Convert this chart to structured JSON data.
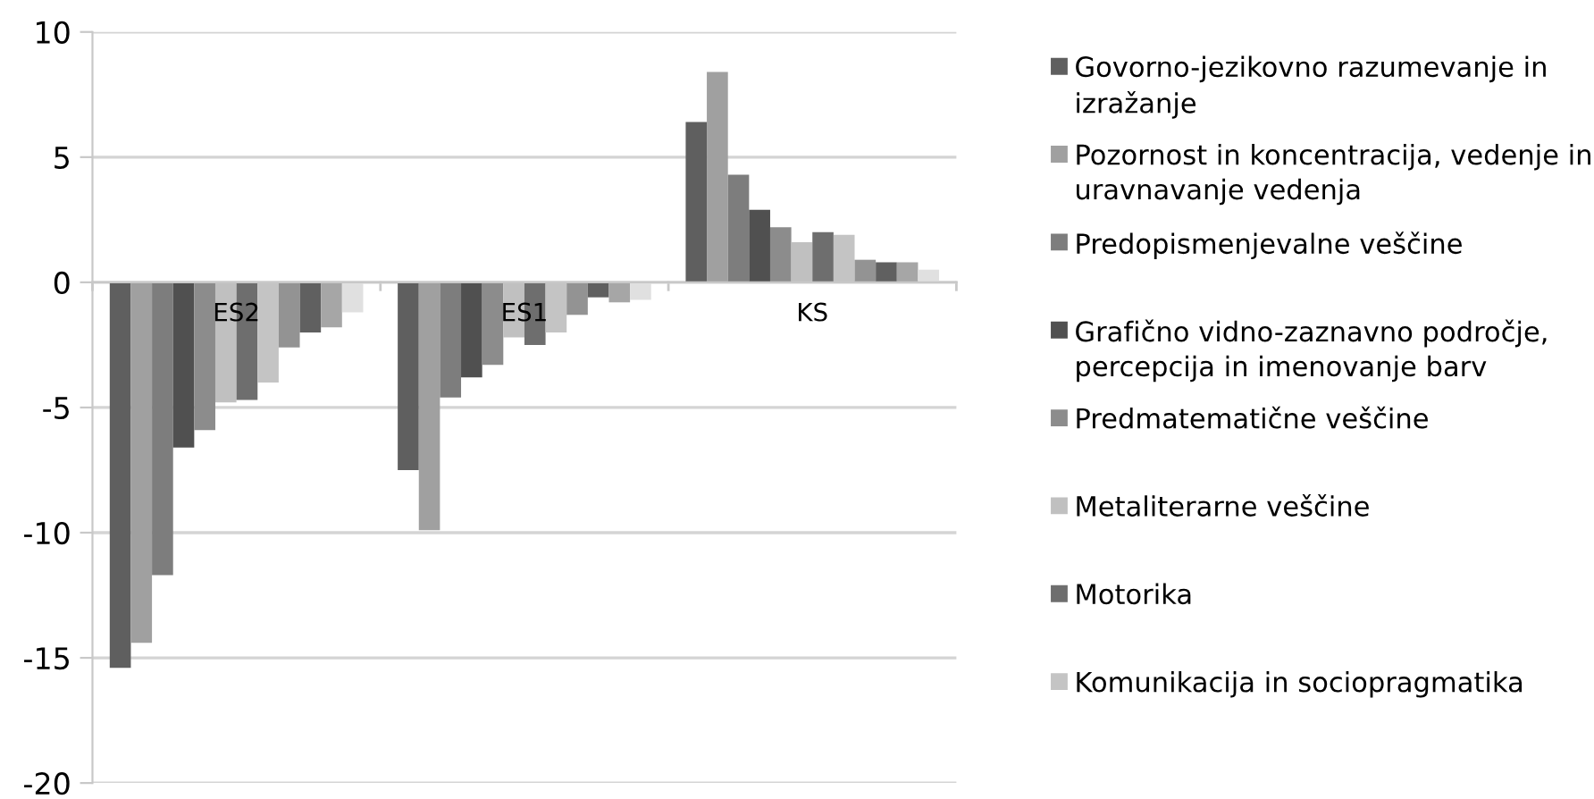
{
  "chart_data": {
    "type": "bar",
    "categories": [
      "ES2",
      "ES1",
      "KS"
    ],
    "ylim": [
      -20,
      10
    ],
    "yticks": [
      -20,
      -15,
      -10,
      -5,
      0,
      5,
      10
    ],
    "grid": "y",
    "legend": "right",
    "series": [
      {
        "name": "Govorno-jezikovno razumevanje in izražanje",
        "color": "#5f5f5f",
        "values": [
          -15.4,
          -7.5,
          6.4
        ]
      },
      {
        "name": "Pozornost in koncentracija, vedenje in uravnavanje vedenja",
        "color": "#a0a0a0",
        "values": [
          -14.4,
          -9.9,
          8.4
        ]
      },
      {
        "name": "Predopismenjevalne veščine",
        "color": "#7d7d7d",
        "values": [
          -11.7,
          -4.6,
          4.3
        ]
      },
      {
        "name": "Grafično vidno-zaznavno področje, percepcija in imenovanje barv",
        "color": "#505050",
        "values": [
          -6.6,
          -3.8,
          2.9
        ]
      },
      {
        "name": "Predmatematične veščine",
        "color": "#8c8c8c",
        "values": [
          -5.9,
          -3.3,
          2.2
        ]
      },
      {
        "name": "Metaliterarne veščine",
        "color": "#c0c0c0",
        "values": [
          -4.8,
          -2.2,
          1.6
        ]
      },
      {
        "name": "Motorika",
        "color": "#6e6e6e",
        "values": [
          -4.7,
          -2.5,
          2.0
        ]
      },
      {
        "name": "Komunikacija in sociopragmatika",
        "color": "#c4c4c4",
        "values": [
          -4.0,
          -2.0,
          1.9
        ]
      },
      {
        "color": "#939393",
        "values": [
          -2.6,
          -1.3,
          0.9
        ]
      },
      {
        "color": "#606060",
        "values": [
          -2.0,
          -0.6,
          0.8
        ]
      },
      {
        "color": "#a6a6a6",
        "values": [
          -1.8,
          -0.8,
          0.8
        ]
      },
      {
        "color": "#e0e0e0",
        "values": [
          -1.2,
          -0.7,
          0.5
        ]
      }
    ]
  }
}
